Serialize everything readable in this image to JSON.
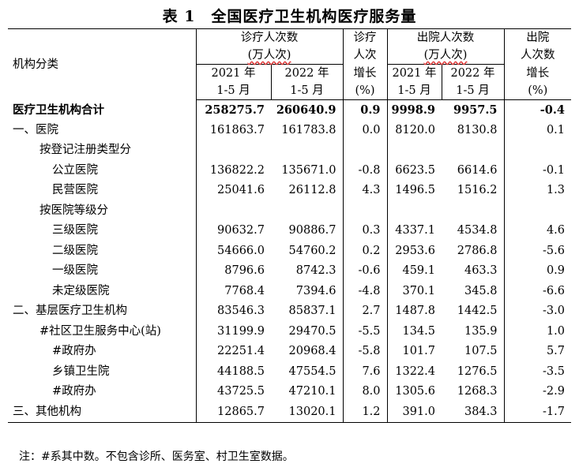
{
  "title": "表 1　全国医疗卫生机构医疗服务量",
  "header": {
    "category": "机构分类",
    "visits_group": "诊疗人次数",
    "visits_unit": "(万人次)",
    "visits_growth_l1": "诊疗",
    "visits_growth_l2": "人次",
    "visits_growth_l3": "增长",
    "visits_growth_l4": "(%)",
    "discharge_group": "出院人次数",
    "discharge_unit": "(万人次)",
    "discharge_growth_l1": "出院",
    "discharge_growth_l2": "人次数",
    "discharge_growth_l3": "增长",
    "discharge_growth_l4": "(%)",
    "y2021_l1": "2021 年",
    "y2021_l2": "1-5 月",
    "y2022_l1": "2022 年",
    "y2022_l2": "1-5 月"
  },
  "rows": [
    {
      "name": "医疗卫生机构合计",
      "v2021": "258275.7",
      "v2022": "260640.9",
      "vg": "0.9",
      "d2021": "9998.9",
      "d2022": "9957.5",
      "dg": "-0.4"
    },
    {
      "name": "一、医院",
      "v2021": "161863.7",
      "v2022": "161783.8",
      "vg": "0.0",
      "d2021": "8120.0",
      "d2022": "8130.8",
      "dg": "0.1"
    },
    {
      "name": "按登记注册类型分"
    },
    {
      "name": "公立医院",
      "v2021": "136822.2",
      "v2022": "135671.0",
      "vg": "-0.8",
      "d2021": "6623.5",
      "d2022": "6614.6",
      "dg": "-0.1"
    },
    {
      "name": "民营医院",
      "v2021": "25041.6",
      "v2022": "26112.8",
      "vg": "4.3",
      "d2021": "1496.5",
      "d2022": "1516.2",
      "dg": "1.3"
    },
    {
      "name": "按医院等级分"
    },
    {
      "name": "三级医院",
      "v2021": "90632.7",
      "v2022": "90886.7",
      "vg": "0.3",
      "d2021": "4337.1",
      "d2022": "4534.8",
      "dg": "4.6"
    },
    {
      "name": "二级医院",
      "v2021": "54666.0",
      "v2022": "54760.2",
      "vg": "0.2",
      "d2021": "2953.6",
      "d2022": "2786.8",
      "dg": "-5.6"
    },
    {
      "name": "一级医院",
      "v2021": "8796.6",
      "v2022": "8742.3",
      "vg": "-0.6",
      "d2021": "459.1",
      "d2022": "463.3",
      "dg": "0.9"
    },
    {
      "name": "未定级医院",
      "v2021": "7768.4",
      "v2022": "7394.6",
      "vg": "-4.8",
      "d2021": "370.1",
      "d2022": "345.8",
      "dg": "-6.6"
    },
    {
      "name": "二、基层医疗卫生机构",
      "v2021": "83546.3",
      "v2022": "85837.1",
      "vg": "2.7",
      "d2021": "1487.8",
      "d2022": "1442.5",
      "dg": "-3.0"
    },
    {
      "name": "#社区卫生服务中心(站)",
      "v2021": "31199.9",
      "v2022": "29470.5",
      "vg": "-5.5",
      "d2021": "134.5",
      "d2022": "135.9",
      "dg": "1.0"
    },
    {
      "name": "#政府办",
      "v2021": "22251.4",
      "v2022": "20968.4",
      "vg": "-5.8",
      "d2021": "101.7",
      "d2022": "107.5",
      "dg": "5.7"
    },
    {
      "name": "乡镇卫生院",
      "v2021": "44188.5",
      "v2022": "47554.5",
      "vg": "7.6",
      "d2021": "1322.4",
      "d2022": "1276.5",
      "dg": "-3.5"
    },
    {
      "name": "#政府办",
      "v2021": "43725.5",
      "v2022": "47210.1",
      "vg": "8.0",
      "d2021": "1305.6",
      "d2022": "1268.3",
      "dg": "-2.9"
    },
    {
      "name": "三、其他机构",
      "v2021": "12865.7",
      "v2022": "13020.1",
      "vg": "1.2",
      "d2021": "391.0",
      "d2022": "384.3",
      "dg": "-1.7"
    }
  ],
  "note": "注：#系其中数。不包含诊所、医务室、村卫生室数据。"
}
